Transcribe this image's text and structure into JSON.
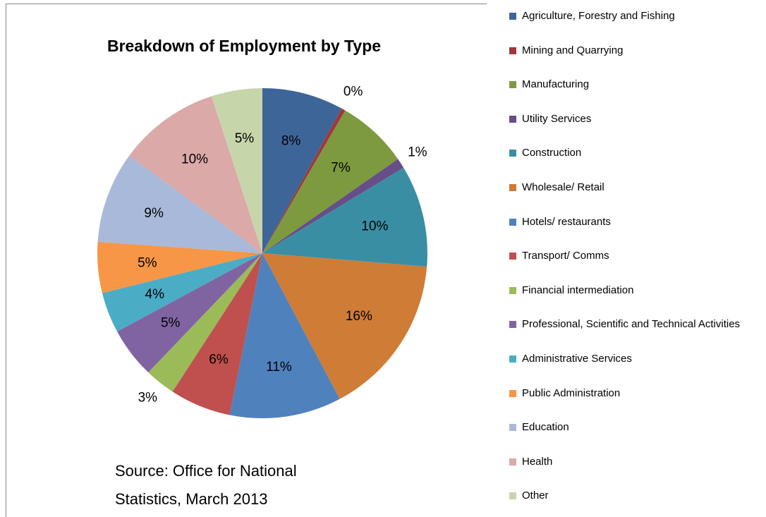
{
  "chart_data": {
    "type": "pie",
    "title": "Breakdown of Employment by Type",
    "annotation": "Source: Office for National Statistics, March 2013",
    "categories": [
      "Agriculture, Forestry and Fishing",
      "Mining and Quarrying",
      "Manufacturing",
      "Utility Services",
      "Construction",
      "Wholesale/ Retail",
      "Hotels/ restaurants",
      "Transport/ Comms",
      "Financial intermediation",
      "Professional, Scientific and Technical Activities",
      "Administrative Services",
      "Public Administration",
      "Education",
      "Health",
      "Other"
    ],
    "values": [
      8,
      0.4,
      7,
      1,
      10,
      16,
      11,
      6,
      3,
      5,
      4,
      5,
      9,
      10,
      5
    ],
    "value_labels": [
      "8%",
      "0%",
      "7%",
      "1%",
      "10%",
      "16%",
      "11%",
      "6%",
      "3%",
      "5%",
      "4%",
      "5%",
      "9%",
      "10%",
      "5%"
    ],
    "colors": [
      "#3E6598",
      "#A0373A",
      "#7D9A3F",
      "#664E88",
      "#3A8EA3",
      "#CF7C37",
      "#4F81BD",
      "#C0504D",
      "#9BBB59",
      "#8064A2",
      "#4BACC6",
      "#F79646",
      "#A9B9D9",
      "#DBA9A8",
      "#C6D6AA"
    ],
    "legend": "right"
  }
}
